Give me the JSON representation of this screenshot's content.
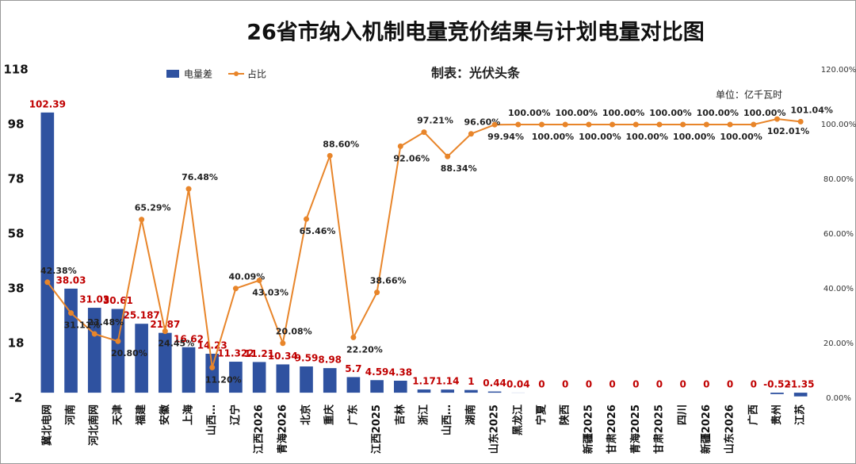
{
  "chart_data": {
    "type": "combo",
    "title": "26省市纳入机制电量竞价结果与计划电量对比图",
    "subtitle": "制表：光伏头条",
    "annotation": "单位：亿千瓦时",
    "categories": [
      "冀北电网",
      "河南",
      "河北南网",
      "天津",
      "福建",
      "安徽",
      "上海",
      "山西…",
      "辽宁",
      "江西2026",
      "青海2026",
      "北京",
      "重庆",
      "广东",
      "江西2025",
      "吉林",
      "浙江",
      "山西…",
      "湖南",
      "山东2025",
      "黑龙江",
      "宁夏",
      "陕西",
      "新疆2025",
      "甘肃2026",
      "青海2025",
      "甘肃2025",
      "四川",
      "新疆2026",
      "山东2026",
      "广西",
      "贵州",
      "江苏"
    ],
    "series": [
      {
        "name": "电量差",
        "type": "bar",
        "color": "#2f52a0",
        "label_color": "#c00000",
        "values": [
          102.39,
          38.03,
          31.03,
          30.61,
          25.187,
          21.87,
          16.62,
          14.23,
          11.322,
          11.21,
          10.34,
          9.59,
          8.98,
          5.7,
          4.59,
          4.38,
          1.17,
          1.14,
          1,
          0.44,
          0.04,
          0,
          0,
          0,
          0,
          0,
          0,
          0,
          0,
          0,
          0,
          -0.52,
          -1.35
        ]
      },
      {
        "name": "占比",
        "type": "line",
        "axis": "y2",
        "color": "#e8852a",
        "label_color": "#222222",
        "values": [
          42.38,
          31.11,
          23.48,
          20.8,
          65.29,
          24.45,
          76.48,
          11.2,
          40.09,
          43.03,
          20.08,
          65.46,
          88.6,
          22.2,
          38.66,
          92.06,
          97.21,
          88.34,
          96.6,
          99.94,
          100,
          100,
          100,
          100,
          100,
          100,
          100,
          100,
          100,
          100,
          100,
          102.01,
          101.04
        ],
        "value_labels": [
          "42.38%",
          "31.11%",
          "23.48%",
          "20.80%",
          "65.29%",
          "24.45%",
          "76.48%",
          "11.20%",
          "40.09%",
          "43.03%",
          "20.08%",
          "65.46%",
          "88.60%",
          "22.20%",
          "38.66%",
          "92.06%",
          "97.21%",
          "88.34%",
          "96.60%",
          "99.94%",
          "100.00%",
          "100.00%",
          "100.00%",
          "100.00%",
          "100.00%",
          "100.00%",
          "100.00%",
          "100.00%",
          "100.00%",
          "100.00%",
          "100.00%",
          "102.01%",
          "101.04%"
        ]
      }
    ],
    "ylim": [
      -2,
      118
    ],
    "yticks": [
      -2,
      18,
      38,
      58,
      78,
      98,
      118
    ],
    "y2lim": [
      0,
      120
    ],
    "y2ticks": [
      {
        "value": 0,
        "label": "0.00%"
      },
      {
        "value": 20,
        "label": "20.00%"
      },
      {
        "value": 40,
        "label": "40.00%"
      },
      {
        "value": 60,
        "label": "60.00%"
      },
      {
        "value": 80,
        "label": "80.00%"
      },
      {
        "value": 100,
        "label": "100.00%"
      },
      {
        "value": 120,
        "label": "120.00%"
      }
    ],
    "grid": false,
    "legend": "top-left"
  }
}
